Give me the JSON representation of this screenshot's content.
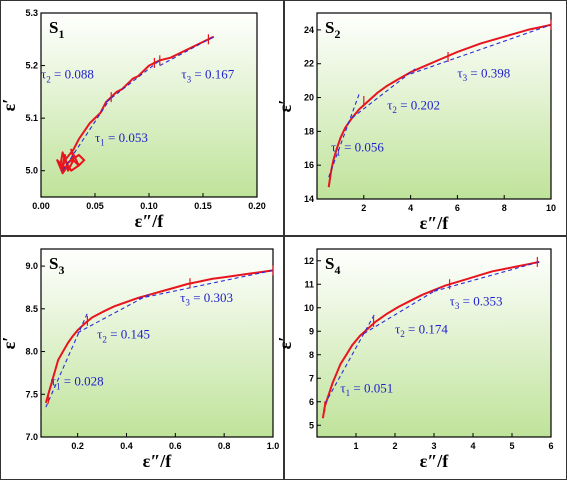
{
  "chart_data": [
    {
      "type": "line",
      "panel_label": "S",
      "panel_sub": "1",
      "xlabel_main": "ε″/f",
      "ylabel": "ε′",
      "xlim": [
        0.0,
        0.2
      ],
      "ylim": [
        4.95,
        5.3
      ],
      "x_ticks": [
        0.0,
        0.05,
        0.1,
        0.15,
        0.2
      ],
      "x_tick_labels": [
        "0.00",
        "0.05",
        "0.10",
        "0.15",
        "0.20"
      ],
      "y_ticks": [
        5.0,
        5.1,
        5.2,
        5.3
      ],
      "y_tick_labels": [
        "5.0",
        "5.1",
        "5.2",
        "5.3"
      ],
      "series": [
        {
          "role": "data",
          "x": [
            0.015,
            0.02,
            0.022,
            0.025,
            0.03,
            0.035,
            0.028,
            0.03,
            0.025,
            0.035,
            0.04,
            0.035,
            0.028,
            0.022,
            0.02,
            0.018,
            0.02,
            0.015,
            0.02,
            0.025,
            0.02,
            0.022,
            0.03,
            0.035,
            0.04,
            0.045,
            0.05,
            0.055,
            0.06,
            0.065,
            0.07,
            0.075,
            0.08,
            0.085,
            0.09,
            0.095,
            0.1,
            0.105,
            0.11,
            0.12,
            0.13,
            0.14,
            0.15,
            0.155,
            0.16
          ],
          "y": [
            5.02,
            5.01,
            5.03,
            5.0,
            5.02,
            5.01,
            5.04,
            5.025,
            5.015,
            5.03,
            5.02,
            5.01,
            5.0,
            5.02,
            5.035,
            5.01,
            5.0,
            5.02,
            4.995,
            5.01,
            5.005,
            5.02,
            5.04,
            5.06,
            5.075,
            5.09,
            5.1,
            5.11,
            5.13,
            5.14,
            5.15,
            5.155,
            5.165,
            5.175,
            5.18,
            5.19,
            5.2,
            5.205,
            5.21,
            5.215,
            5.225,
            5.235,
            5.245,
            5.25,
            5.255
          ]
        }
      ],
      "fits": [
        {
          "x": [
            0.02,
            0.065
          ],
          "y": [
            5.0,
            5.14
          ]
        },
        {
          "x": [
            0.06,
            0.11
          ],
          "y": [
            5.13,
            5.21
          ]
        },
        {
          "x": [
            0.11,
            0.16
          ],
          "y": [
            5.2,
            5.255
          ]
        }
      ],
      "markers": [
        [
          0.065,
          5.14
        ],
        [
          0.105,
          5.205
        ],
        [
          0.11,
          5.21
        ],
        [
          0.155,
          5.25
        ]
      ],
      "annotations": [
        {
          "label": "τ",
          "sub": "1",
          "value": " = 0.053",
          "x": 0.05,
          "y": 5.055
        },
        {
          "label": "τ",
          "sub": "2",
          "value": " = 0.088",
          "x": 0.0,
          "y": 5.175
        },
        {
          "label": "τ",
          "sub": "3",
          "value": " = 0.167",
          "x": 0.13,
          "y": 5.175
        }
      ]
    },
    {
      "type": "line",
      "panel_label": "S",
      "panel_sub": "2",
      "xlabel_main": "ε″/f",
      "ylabel": "ε′",
      "xlim": [
        0,
        10
      ],
      "ylim": [
        14,
        25
      ],
      "x_ticks": [
        2,
        4,
        6,
        8,
        10
      ],
      "x_tick_labels": [
        "2",
        "4",
        "6",
        "8",
        "10"
      ],
      "y_ticks": [
        14,
        16,
        18,
        20,
        22,
        24
      ],
      "y_tick_labels": [
        "14",
        "16",
        "18",
        "20",
        "22",
        "24"
      ],
      "series": [
        {
          "role": "data",
          "x": [
            0.5,
            0.6,
            0.7,
            0.85,
            1.0,
            1.2,
            1.5,
            1.8,
            2.2,
            2.6,
            3.0,
            3.5,
            4.0,
            4.5,
            5.0,
            5.5,
            6.0,
            6.5,
            7.0,
            7.5,
            8.0,
            8.5,
            9.0,
            9.5,
            10.0
          ],
          "y": [
            14.7,
            15.6,
            16.3,
            17.0,
            17.6,
            18.2,
            18.8,
            19.3,
            19.8,
            20.3,
            20.7,
            21.1,
            21.5,
            21.8,
            22.1,
            22.4,
            22.7,
            22.95,
            23.2,
            23.4,
            23.6,
            23.8,
            24.0,
            24.15,
            24.3
          ]
        }
      ],
      "fits": [
        {
          "x": [
            0.5,
            1.8
          ],
          "y": [
            15.3,
            20.2
          ]
        },
        {
          "x": [
            1.5,
            4.2
          ],
          "y": [
            18.8,
            21.7
          ]
        },
        {
          "x": [
            4.0,
            10.0
          ],
          "y": [
            21.4,
            24.3
          ]
        }
      ],
      "markers": [
        [
          2.0,
          19.8
        ],
        [
          5.6,
          22.4
        ],
        [
          10.0,
          24.3
        ]
      ],
      "annotations": [
        {
          "label": "τ",
          "sub": "1",
          "value": " = 0.056",
          "x": 0.6,
          "y": 16.8
        },
        {
          "label": "τ",
          "sub": "2",
          "value": " = 0.202",
          "x": 3.0,
          "y": 19.3
        },
        {
          "label": "τ",
          "sub": "3",
          "value": " = 0.398",
          "x": 6.0,
          "y": 21.2
        }
      ]
    },
    {
      "type": "line",
      "panel_label": "S",
      "panel_sub": "3",
      "xlabel_main": "ε″/f",
      "ylabel": "ε′",
      "xlim": [
        0.05,
        1.0
      ],
      "ylim": [
        7.0,
        9.2
      ],
      "x_ticks": [
        0.2,
        0.4,
        0.6,
        0.8,
        1.0
      ],
      "x_tick_labels": [
        "0.2",
        "0.4",
        "0.6",
        "0.8",
        "1.0"
      ],
      "y_ticks": [
        7.0,
        7.5,
        8.0,
        8.5,
        9.0
      ],
      "y_tick_labels": [
        "7.0",
        "7.5",
        "8.0",
        "8.5",
        "9.0"
      ],
      "series": [
        {
          "role": "data",
          "x": [
            0.07,
            0.08,
            0.09,
            0.1,
            0.11,
            0.12,
            0.14,
            0.16,
            0.18,
            0.2,
            0.23,
            0.26,
            0.3,
            0.35,
            0.4,
            0.45,
            0.5,
            0.55,
            0.6,
            0.65,
            0.7,
            0.75,
            0.8,
            0.85,
            0.9,
            0.95,
            1.0
          ],
          "y": [
            7.4,
            7.5,
            7.6,
            7.7,
            7.8,
            7.9,
            8.0,
            8.1,
            8.18,
            8.25,
            8.33,
            8.4,
            8.46,
            8.53,
            8.58,
            8.63,
            8.67,
            8.71,
            8.75,
            8.79,
            8.82,
            8.85,
            8.87,
            8.89,
            8.91,
            8.93,
            8.95
          ]
        }
      ],
      "fits": [
        {
          "x": [
            0.07,
            0.24
          ],
          "y": [
            7.35,
            8.45
          ]
        },
        {
          "x": [
            0.2,
            0.5
          ],
          "y": [
            8.22,
            8.68
          ]
        },
        {
          "x": [
            0.45,
            1.0
          ],
          "y": [
            8.62,
            8.95
          ]
        }
      ],
      "markers": [
        [
          0.08,
          7.45
        ],
        [
          0.24,
          8.36
        ],
        [
          0.66,
          8.8
        ],
        [
          1.0,
          8.95
        ]
      ],
      "annotations": [
        {
          "label": "τ",
          "sub": "1",
          "value": " = 0.028",
          "x": 0.09,
          "y": 7.6
        },
        {
          "label": "τ",
          "sub": "2",
          "value": " = 0.145",
          "x": 0.28,
          "y": 8.15
        },
        {
          "label": "τ",
          "sub": "3",
          "value": " = 0.303",
          "x": 0.62,
          "y": 8.58
        }
      ]
    },
    {
      "type": "line",
      "panel_label": "S",
      "panel_sub": "4",
      "xlabel_main": "ε″/f",
      "ylabel": "ε′",
      "xlim": [
        0,
        6
      ],
      "ylim": [
        4.5,
        12.5
      ],
      "x_ticks": [
        1,
        2,
        3,
        4,
        5,
        6
      ],
      "x_tick_labels": [
        "1",
        "2",
        "3",
        "4",
        "5",
        "6"
      ],
      "y_ticks": [
        5,
        6,
        7,
        8,
        9,
        10,
        11,
        12
      ],
      "y_tick_labels": [
        "5",
        "6",
        "7",
        "8",
        "9",
        "10",
        "11",
        "12"
      ],
      "series": [
        {
          "role": "data",
          "x": [
            0.15,
            0.2,
            0.3,
            0.4,
            0.5,
            0.6,
            0.75,
            0.9,
            1.1,
            1.3,
            1.5,
            1.8,
            2.1,
            2.4,
            2.7,
            3.0,
            3.3,
            3.6,
            3.9,
            4.2,
            4.5,
            4.8,
            5.1,
            5.4,
            5.7
          ],
          "y": [
            5.3,
            5.8,
            6.3,
            6.8,
            7.2,
            7.6,
            8.0,
            8.4,
            8.8,
            9.1,
            9.4,
            9.75,
            10.05,
            10.3,
            10.55,
            10.75,
            10.95,
            11.1,
            11.25,
            11.4,
            11.55,
            11.65,
            11.75,
            11.85,
            11.95
          ]
        }
      ],
      "fits": [
        {
          "x": [
            0.2,
            1.5
          ],
          "y": [
            5.9,
            9.8
          ]
        },
        {
          "x": [
            1.2,
            3.2
          ],
          "y": [
            8.9,
            10.9
          ]
        },
        {
          "x": [
            3.0,
            5.7
          ],
          "y": [
            10.7,
            11.95
          ]
        }
      ],
      "markers": [
        [
          0.2,
          5.8
        ],
        [
          1.45,
          9.4
        ],
        [
          3.4,
          11.0
        ],
        [
          5.65,
          11.95
        ]
      ],
      "annotations": [
        {
          "label": "τ",
          "sub": "1",
          "value": " = 0.051",
          "x": 0.6,
          "y": 6.4
        },
        {
          "label": "τ",
          "sub": "2",
          "value": " = 0.174",
          "x": 2.0,
          "y": 8.9
        },
        {
          "label": "τ",
          "sub": "3",
          "value": " = 0.353",
          "x": 3.4,
          "y": 10.1
        }
      ]
    }
  ],
  "colors": {
    "data_line": "#e8141e",
    "fit_line": "#2b2bd6",
    "annotation": "#1f1fcc",
    "bg_top": "#ffffff",
    "bg_bottom": "#bfe39a",
    "axis": "#000000"
  }
}
